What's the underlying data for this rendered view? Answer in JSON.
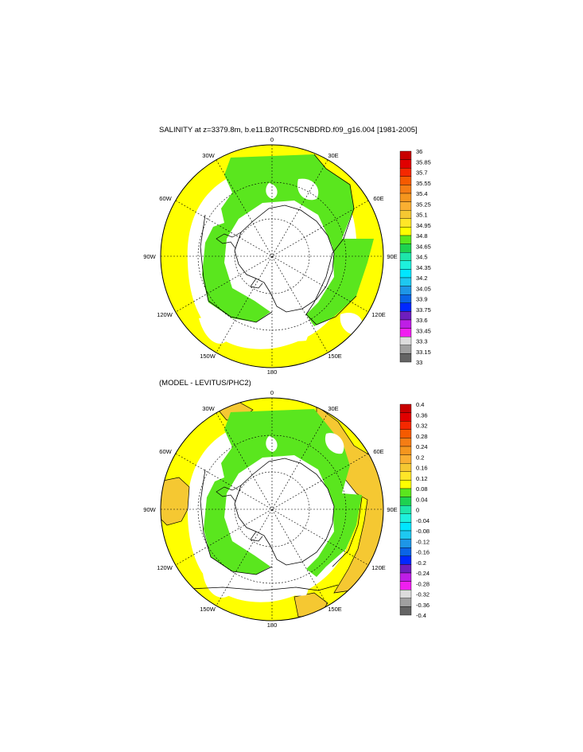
{
  "panels": [
    {
      "title": "SALINITY at z=3379.8m, b.e11.B20TRC5CNBDRD.f09_g16.004 [1981-2005]",
      "lon_labels": [
        "0",
        "30E",
        "60E",
        "90E",
        "120E",
        "150E",
        "180",
        "150W",
        "120W",
        "90W",
        "60W",
        "30W"
      ],
      "colorbar": {
        "labels": [
          "36",
          "35.85",
          "35.7",
          "35.55",
          "35.4",
          "35.25",
          "35.1",
          "34.95",
          "34.8",
          "34.65",
          "34.5",
          "34.35",
          "34.2",
          "34.05",
          "33.9",
          "33.75",
          "33.6",
          "33.45",
          "33.3",
          "33.15",
          "33"
        ],
        "colors": [
          "#c80000",
          "#e00000",
          "#f52800",
          "#f55a00",
          "#f57d14",
          "#f5961e",
          "#faaf32",
          "#f5c832",
          "#ffe628",
          "#ffff00",
          "#5ae61e",
          "#1ed250",
          "#1ee6aa",
          "#1ef0dc",
          "#00e6ff",
          "#1ec8f0",
          "#1e96e6",
          "#0a64e6",
          "#0028ff",
          "#6e1ebe",
          "#be1ee6",
          "#f01ef0",
          "#dcdcdc",
          "#a0a0a0",
          "#646464"
        ]
      }
    },
    {
      "title": "(MODEL - LEVITUS/PHC2)",
      "lon_labels": [
        "0",
        "30E",
        "60E",
        "90E",
        "120E",
        "150E",
        "180",
        "150W",
        "120W",
        "90W",
        "60W",
        "30W"
      ],
      "colorbar": {
        "labels": [
          "0.4",
          "0.36",
          "0.32",
          "0.28",
          "0.24",
          "0.2",
          "0.16",
          "0.12",
          "0.08",
          "0.04",
          "0",
          "-0.04",
          "-0.08",
          "-0.12",
          "-0.16",
          "-0.2",
          "-0.24",
          "-0.28",
          "-0.32",
          "-0.36",
          "-0.4"
        ],
        "colors": [
          "#c80000",
          "#e00000",
          "#f52800",
          "#f55a00",
          "#f57d14",
          "#f5961e",
          "#faaf32",
          "#f5c832",
          "#ffe628",
          "#ffff00",
          "#5ae61e",
          "#1ed250",
          "#1ee6aa",
          "#1ef0dc",
          "#00e6ff",
          "#1ec8f0",
          "#1e96e6",
          "#0a64e6",
          "#0028ff",
          "#6e1ebe",
          "#be1ee6",
          "#f01ef0",
          "#dcdcdc",
          "#a0a0a0",
          "#646464"
        ]
      }
    }
  ],
  "colors": {
    "yellow": "#ffff00",
    "green": "#5ae61e",
    "orange": "#f5c832",
    "land": "#ffffff"
  }
}
